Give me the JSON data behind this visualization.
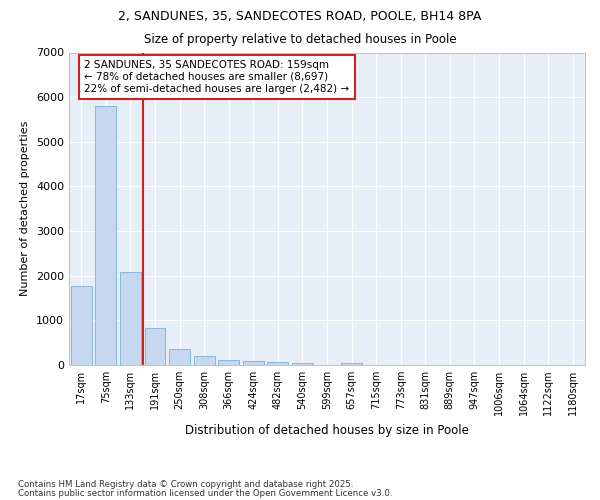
{
  "title1": "2, SANDUNES, 35, SANDECOTES ROAD, POOLE, BH14 8PA",
  "title2": "Size of property relative to detached houses in Poole",
  "xlabel": "Distribution of detached houses by size in Poole",
  "ylabel": "Number of detached properties",
  "categories": [
    "17sqm",
    "75sqm",
    "133sqm",
    "191sqm",
    "250sqm",
    "308sqm",
    "366sqm",
    "424sqm",
    "482sqm",
    "540sqm",
    "599sqm",
    "657sqm",
    "715sqm",
    "773sqm",
    "831sqm",
    "889sqm",
    "947sqm",
    "1006sqm",
    "1064sqm",
    "1122sqm",
    "1180sqm"
  ],
  "values": [
    1780,
    5800,
    2080,
    820,
    360,
    200,
    105,
    90,
    65,
    55,
    0,
    40,
    0,
    0,
    0,
    0,
    0,
    0,
    0,
    0,
    0
  ],
  "bar_color": "#c5d8f0",
  "bar_edge_color": "#7aafd4",
  "bar_edge_width": 0.6,
  "vline_color": "#cc2222",
  "annotation_text": "2 SANDUNES, 35 SANDECOTES ROAD: 159sqm\n← 78% of detached houses are smaller (8,697)\n22% of semi-detached houses are larger (2,482) →",
  "annotation_box_color": "#ffffff",
  "annotation_box_edge": "#cc2222",
  "ylim": [
    0,
    7000
  ],
  "yticks": [
    0,
    1000,
    2000,
    3000,
    4000,
    5000,
    6000,
    7000
  ],
  "bg_color": "#e8eef8",
  "grid_color": "#ffffff",
  "fig_bg": "#ffffff",
  "footer1": "Contains HM Land Registry data © Crown copyright and database right 2025.",
  "footer2": "Contains public sector information licensed under the Open Government Licence v3.0."
}
